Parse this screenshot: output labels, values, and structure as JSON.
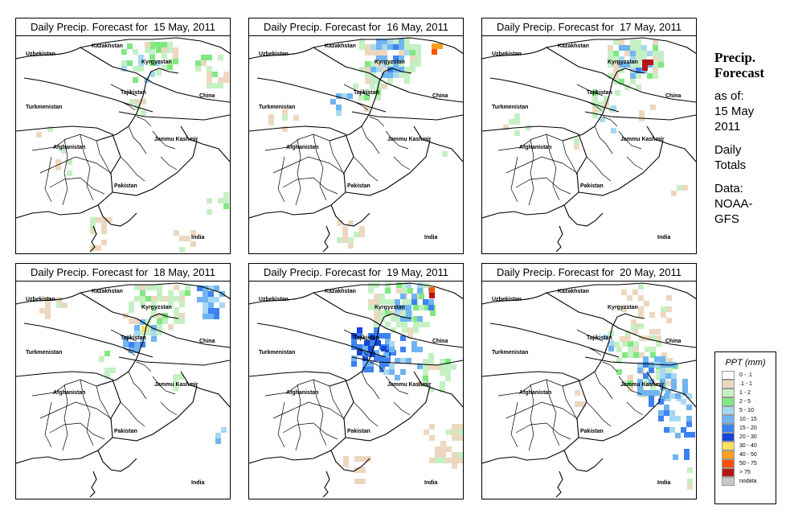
{
  "panels": [
    {
      "title": "Daily Precip. Forecast for  15 May, 2011"
    },
    {
      "title": "Daily Precip. Forecast for  16 May, 2011"
    },
    {
      "title": "Daily Precip. Forecast for  17 May, 2011"
    },
    {
      "title": "Daily Precip. Forecast for  18 May, 2011"
    },
    {
      "title": "Daily Precip. Forecast for  19 May, 2011"
    },
    {
      "title": "Daily Precip. Forecast for  20 May, 2011"
    }
  ],
  "map_labels": {
    "kazakhstan": "Kazakhstan",
    "uzbekistan": "Uzbekistan",
    "kyrgyzstan": "Kyrgyzstan",
    "tajikistan": "Tajikistan",
    "turkmenistan": "Turkmenistan",
    "china": "China",
    "afghanistan": "Afghanistan",
    "jammu_kashmir": "Jammu Kashmir",
    "pakistan": "Pakistan",
    "india": "India"
  },
  "sidebar": {
    "heading_line1": "Precip.",
    "heading_line2": "Forecast",
    "asof_line1": "as of:",
    "asof_line2": "15 May",
    "asof_line3": "2011",
    "totals_line1": "Daily",
    "totals_line2": "Totals",
    "data_line1": "Data:",
    "data_line2": "NOAA-",
    "data_line3": "GFS"
  },
  "legend": {
    "title": "PPT (mm)",
    "entries": [
      {
        "label": "0 - .1",
        "color": "#ffffff"
      },
      {
        "label": ".1 - 1",
        "color": "#ecd8c0"
      },
      {
        "label": "1 - 2",
        "color": "#c4f0c4"
      },
      {
        "label": "2 - 5",
        "color": "#80e880"
      },
      {
        "label": "5 - 10",
        "color": "#a8d8f0"
      },
      {
        "label": "10 - 15",
        "color": "#70b4f0"
      },
      {
        "label": "15 - 20",
        "color": "#3c82f0"
      },
      {
        "label": "20 - 30",
        "color": "#1446d8"
      },
      {
        "label": "30 - 40",
        "color": "#ffe060"
      },
      {
        "label": "40 - 50",
        "color": "#ffa020"
      },
      {
        "label": "50 - 75",
        "color": "#ff5000"
      },
      {
        "label": "> 75",
        "color": "#b41414"
      },
      {
        "label": "nodata",
        "color": "#c8c8c8"
      }
    ]
  }
}
